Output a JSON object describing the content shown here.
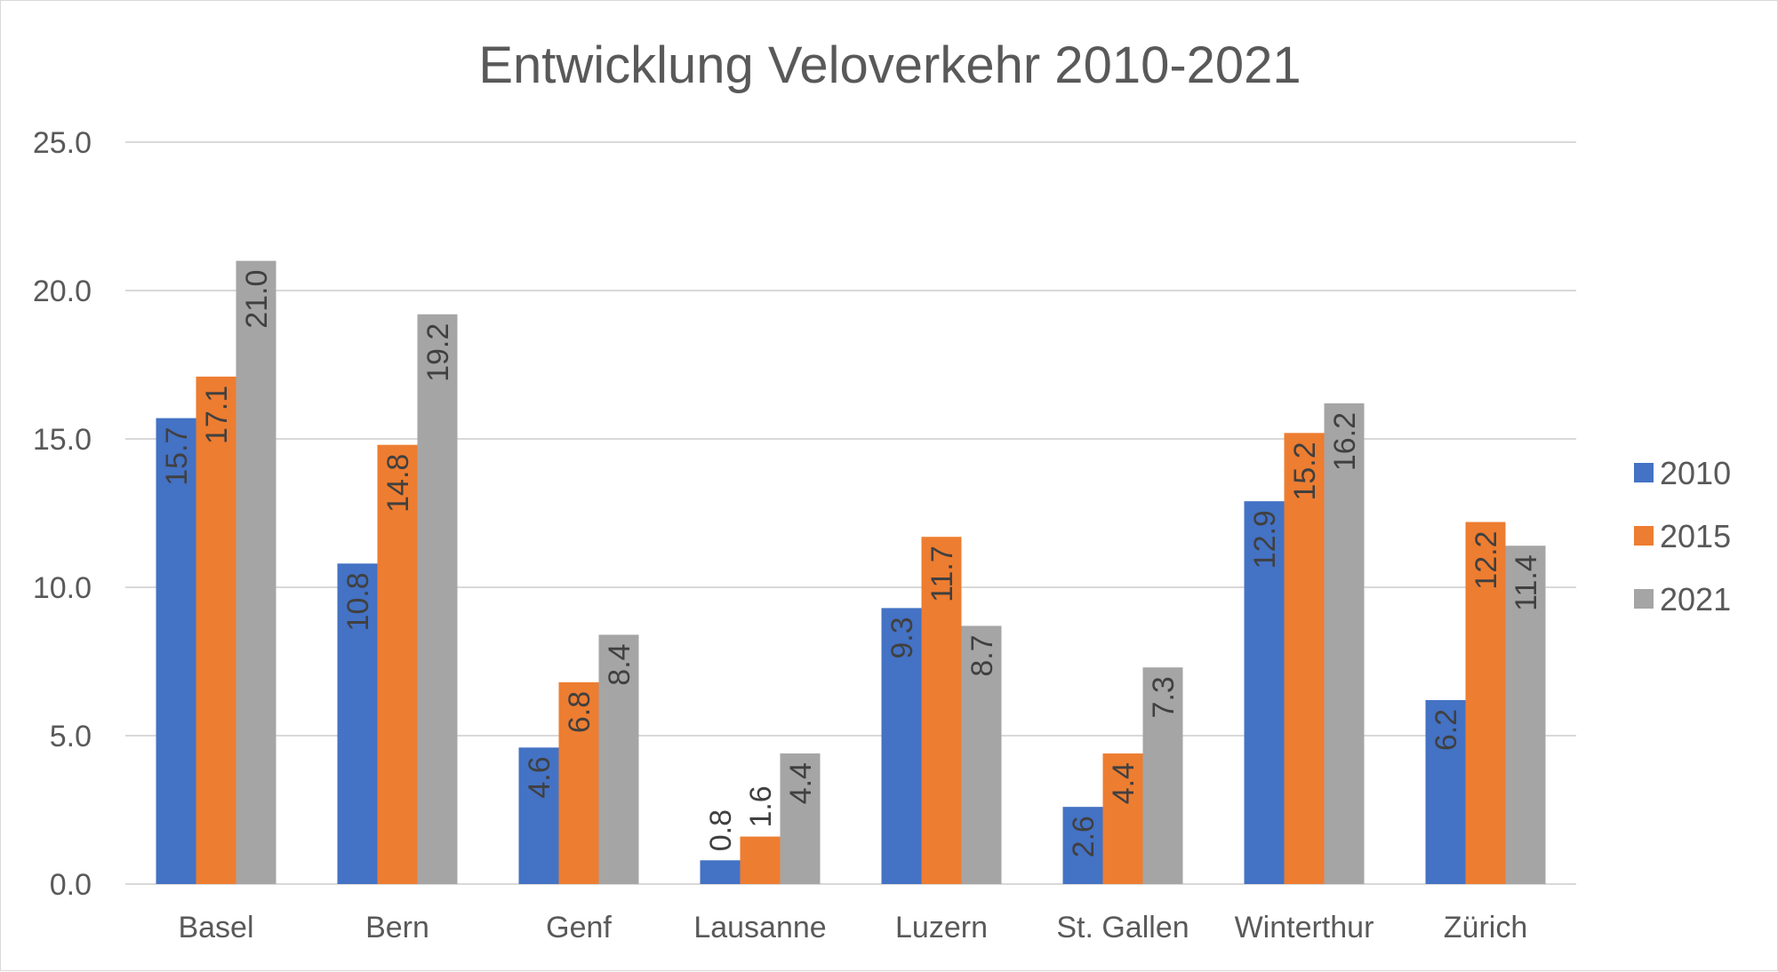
{
  "chart_data": {
    "type": "bar",
    "title": "Entwicklung Veloverkehr 2010-2021",
    "xlabel": "",
    "ylabel": "",
    "ylim": [
      0,
      25
    ],
    "yticks": [
      "0.0",
      "5.0",
      "10.0",
      "15.0",
      "20.0",
      "25.0"
    ],
    "grid": true,
    "legend": "right",
    "categories": [
      "Basel",
      "Bern",
      "Genf",
      "Lausanne",
      "Luzern",
      "St. Gallen",
      "Winterthur",
      "Zürich"
    ],
    "series": [
      {
        "name": "2010",
        "color": "#4472c4",
        "values": [
          15.7,
          10.8,
          4.6,
          0.8,
          9.3,
          2.6,
          12.9,
          6.2
        ],
        "labels": [
          "15.7",
          "10.8",
          "4.6",
          "0.8",
          "9.3",
          "2.6",
          "12.9",
          "6.2"
        ]
      },
      {
        "name": "2015",
        "color": "#ed7d31",
        "values": [
          17.1,
          14.8,
          6.8,
          1.6,
          11.7,
          4.4,
          15.2,
          12.2
        ],
        "labels": [
          "17.1",
          "14.8",
          "6.8",
          "1.6",
          "11.7",
          "4.4",
          "15.2",
          "12.2"
        ]
      },
      {
        "name": "2021",
        "color": "#a5a5a5",
        "values": [
          21.0,
          19.2,
          8.4,
          4.4,
          8.7,
          7.3,
          16.2,
          11.4
        ],
        "labels": [
          "21.0",
          "19.2",
          "8.4",
          "4.4",
          "8.7",
          "7.3",
          "16.2",
          "11.4"
        ]
      }
    ]
  }
}
